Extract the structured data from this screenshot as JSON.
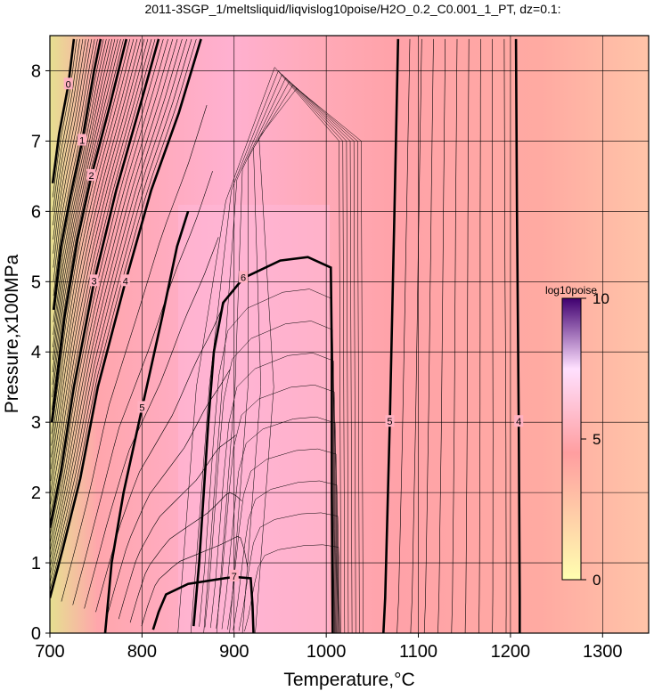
{
  "chart_data": {
    "type": "contour",
    "title": "2011-3SGP_1/meltsliquid/liqvislog10poise/H2O_0.2_C0.001_1_PT, dz=0.1:",
    "xlabel": "Temperature,°C",
    "ylabel": "Pressure,x100MPa",
    "xlim": [
      700,
      1350
    ],
    "ylim": [
      0,
      8.5
    ],
    "x_ticks": [
      "700",
      "800",
      "900",
      "1000",
      "1100",
      "1200",
      "1300"
    ],
    "y_ticks": [
      "0",
      "1",
      "2",
      "3",
      "4",
      "5",
      "6",
      "7",
      "8"
    ],
    "grid": true,
    "colorbar": {
      "label": "log10poise",
      "min": 0,
      "max": 10,
      "ticks": [
        "0",
        "5",
        "10"
      ],
      "colors": [
        "#ffffb0",
        "#ff9ea0",
        "#ffe0ff",
        "#400070"
      ]
    },
    "contour_interval": 0.1,
    "major_contours": [
      {
        "level": 4,
        "label": "4",
        "points": [
          [
            1206,
            8.45
          ],
          [
            1207,
            6.0
          ],
          [
            1209,
            3.0
          ],
          [
            1210,
            0.5
          ],
          [
            1210,
            0
          ]
        ]
      },
      {
        "level": 5,
        "label": "5",
        "points": [
          [
            1078,
            8.45
          ],
          [
            1074,
            6.0
          ],
          [
            1069,
            3.0
          ],
          [
            1064,
            0.5
          ],
          [
            1062,
            0
          ]
        ]
      },
      {
        "level": 5,
        "label": "5",
        "points": [
          [
            760,
            0
          ],
          [
            767,
            1.0
          ],
          [
            780,
            2.0
          ],
          [
            800,
            3.2
          ],
          [
            822,
            4.5
          ],
          [
            838,
            5.5
          ],
          [
            850,
            6.0
          ]
        ]
      },
      {
        "level": 6,
        "label": "6",
        "points": [
          [
            856,
            0.1
          ],
          [
            862,
            1.0
          ],
          [
            867,
            2.0
          ],
          [
            872,
            3.0
          ],
          [
            878,
            4.0
          ],
          [
            888,
            4.7
          ],
          [
            910,
            5.05
          ],
          [
            950,
            5.3
          ],
          [
            980,
            5.35
          ],
          [
            1005,
            5.2
          ],
          [
            1006,
            4.0
          ],
          [
            1006,
            2.0
          ],
          [
            1007,
            0
          ]
        ]
      },
      {
        "level": 7,
        "label": "7",
        "points": [
          [
            812,
            0.05
          ],
          [
            818,
            0.3
          ],
          [
            826,
            0.55
          ],
          [
            850,
            0.7
          ],
          [
            900,
            0.8
          ],
          [
            918,
            0.78
          ],
          [
            920,
            0.4
          ],
          [
            921,
            0
          ]
        ]
      },
      {
        "level": 4,
        "label": "4",
        "points": [
          [
            700,
            0.5
          ],
          [
            714,
            1.2
          ],
          [
            733,
            2.2
          ],
          [
            752,
            3.5
          ],
          [
            782,
            5.0
          ],
          [
            810,
            6.3
          ],
          [
            840,
            7.4
          ],
          [
            864,
            8.45
          ]
        ]
      },
      {
        "level": 3,
        "label": "3",
        "points": [
          [
            700,
            1.5
          ],
          [
            712,
            2.3
          ],
          [
            726,
            3.5
          ],
          [
            748,
            5.0
          ],
          [
            772,
            6.3
          ],
          [
            800,
            7.6
          ],
          [
            818,
            8.45
          ]
        ]
      },
      {
        "level": 2,
        "label": "2",
        "points": [
          [
            702,
            3.0
          ],
          [
            716,
            4.5
          ],
          [
            730,
            5.6
          ],
          [
            745,
            6.5
          ],
          [
            765,
            7.5
          ],
          [
            783,
            8.45
          ]
        ]
      },
      {
        "level": 1,
        "label": "1",
        "points": [
          [
            704,
            4.6
          ],
          [
            712,
            5.5
          ],
          [
            722,
            6.2
          ],
          [
            735,
            7.0
          ],
          [
            748,
            8.0
          ],
          [
            755,
            8.45
          ]
        ]
      },
      {
        "level": 0,
        "label": "0",
        "points": [
          [
            703,
            6.4
          ],
          [
            710,
            7.1
          ],
          [
            720,
            7.8
          ],
          [
            726,
            8.45
          ]
        ]
      }
    ],
    "contour_labels": [
      "0",
      "1",
      "2",
      "3",
      "4",
      "5",
      "6",
      "7"
    ]
  }
}
